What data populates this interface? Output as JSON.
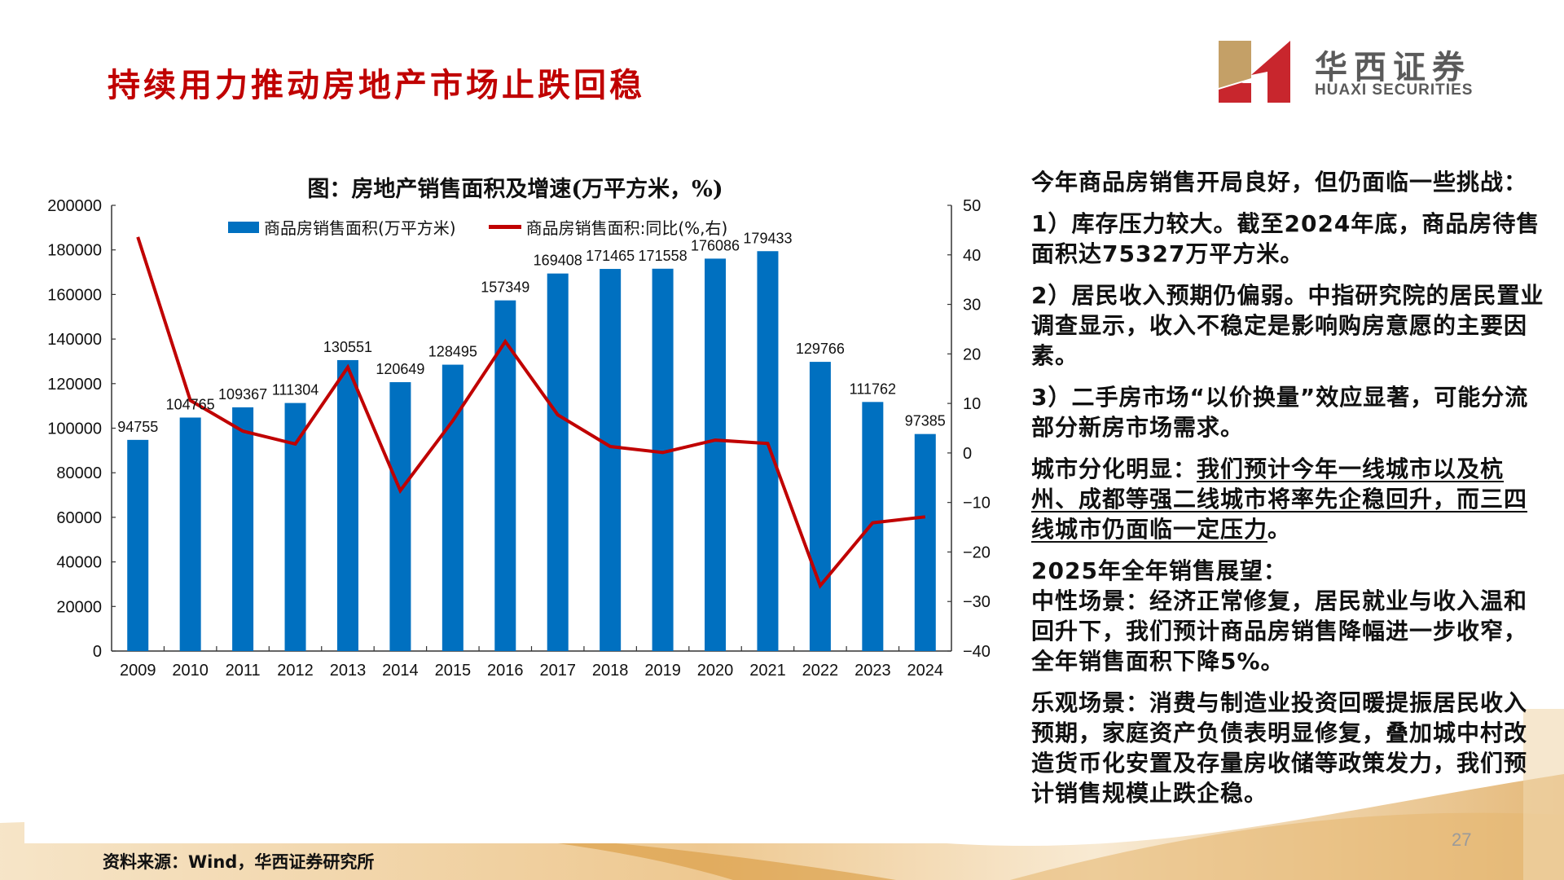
{
  "slide": {
    "title": "持续用力推动房地产市场止跌回稳",
    "page_number": "27",
    "source": "资料来源：Wind，华西证券研究所"
  },
  "logo": {
    "cn": "华西证券",
    "en": "HUAXI SECURITIES",
    "colors": {
      "gold": "#c4a067",
      "red": "#c8262d",
      "text": "#5a5a5a"
    }
  },
  "chart": {
    "title": "图：房地产销售面积及增速(万平方米，%)",
    "legend_bar": "商品房销售面积(万平方米)",
    "legend_line": "商品房销售面积:同比(%,右)",
    "bar_color": "#0070c0",
    "line_color": "#c00000"
  },
  "chart_data": {
    "type": "bar+line",
    "title": "图：房地产销售面积及增速(万平方米，%)",
    "categories": [
      "2009",
      "2010",
      "2011",
      "2012",
      "2013",
      "2014",
      "2015",
      "2016",
      "2017",
      "2018",
      "2019",
      "2020",
      "2021",
      "2022",
      "2023",
      "2024"
    ],
    "series": [
      {
        "name": "商品房销售面积(万平方米)",
        "type": "bar",
        "axis": "left",
        "values": [
          94755,
          104765,
          109367,
          111304,
          130551,
          120649,
          128495,
          157349,
          169408,
          171465,
          171558,
          176086,
          179433,
          129766,
          111762,
          97385
        ]
      },
      {
        "name": "商品房销售面积:同比(%,右)",
        "type": "line",
        "axis": "right",
        "values": [
          43.6,
          10.6,
          4.4,
          1.8,
          17.3,
          -7.6,
          6.5,
          22.5,
          7.7,
          1.3,
          0.1,
          2.6,
          1.9,
          -26.8,
          -14.1,
          -12.9
        ]
      }
    ],
    "left_axis": {
      "ylim": [
        0,
        200000
      ],
      "ticks": [
        0,
        20000,
        40000,
        60000,
        80000,
        100000,
        120000,
        140000,
        160000,
        180000,
        200000
      ]
    },
    "right_axis": {
      "ylim": [
        -40,
        50
      ],
      "ticks": [
        -40,
        -30,
        -20,
        -10,
        0,
        10,
        20,
        30,
        40,
        50
      ]
    },
    "grid": false,
    "legend_position": "top"
  },
  "side_text": {
    "intro": "今年商品房销售开局良好，但仍面临一些挑战：",
    "point1": "1）库存压力较大。截至2024年底，商品房待售面积达75327万平方米。",
    "point2": "2）居民收入预期仍偏弱。中指研究院的居民置业调查显示，收入不稳定是影响购房意愿的主要因素。",
    "point3": "3）二手房市场“以价换量”效应显著，可能分流部分新房市场需求。",
    "city_label": "城市分化明显：",
    "city_text": "我们预计今年一线城市以及杭州、成都等强二线城市将率先企稳回升，而三四线城市仍面临一定压力",
    "city_end": "。",
    "outlook_title": "2025年全年销售展望：",
    "neutral": "中性场景：经济正常修复，居民就业与收入温和回升下，我们预计商品房销售降幅进一步收窄，全年销售面积下降5%。",
    "optimistic": "乐观场景：消费与制造业投资回暖提振居民收入预期，家庭资产负债表明显修复，叠加城中村改造货币化安置及存量房收储等政策发力，我们预计销售规模止跌企稳。"
  }
}
